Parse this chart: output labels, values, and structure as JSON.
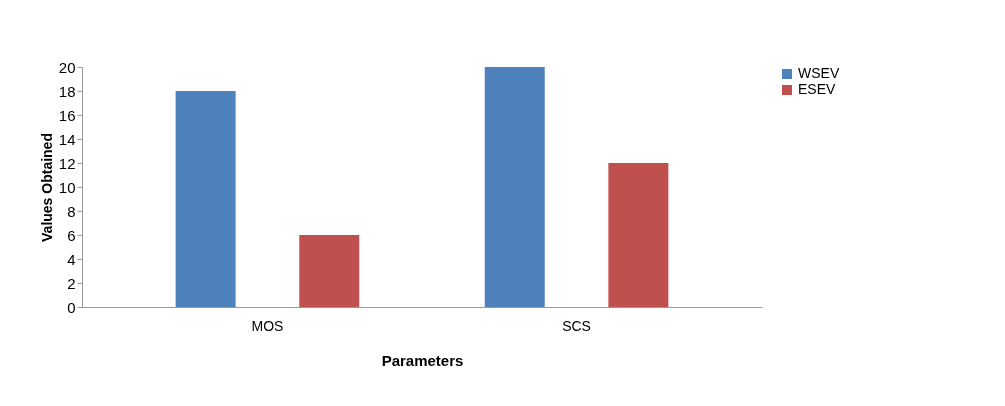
{
  "chart_data": {
    "type": "bar",
    "xlabel": "Parameters",
    "ylabel": "Values Obtained",
    "categories": [
      "MOS",
      "SCS"
    ],
    "series": [
      {
        "name": "WSEV",
        "color": "#4f81bd",
        "values": [
          18,
          20
        ]
      },
      {
        "name": "ESEV",
        "color": "#c0504d",
        "values": [
          6,
          12
        ]
      }
    ],
    "ylim": [
      0,
      20
    ],
    "yticks": [
      0,
      2,
      4,
      6,
      8,
      10,
      12,
      14,
      16,
      18,
      20
    ],
    "grid": false,
    "legend": "right"
  }
}
